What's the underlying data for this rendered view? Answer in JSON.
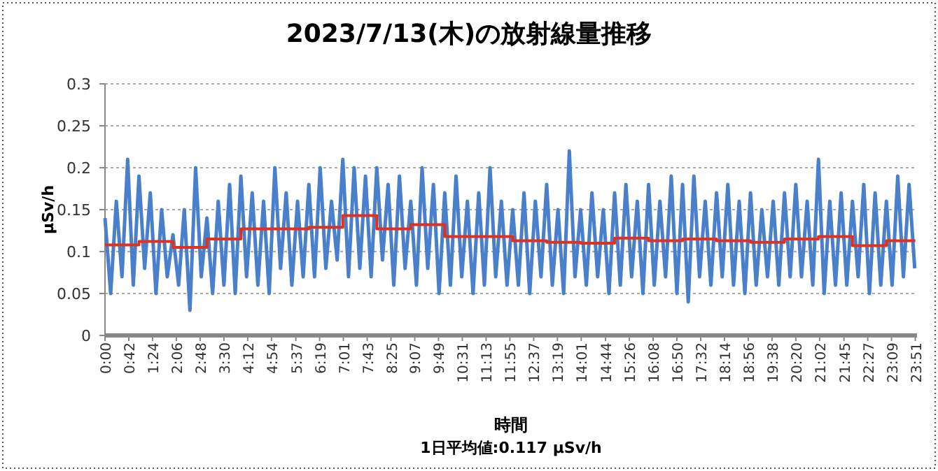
{
  "chart_data": {
    "type": "line",
    "title": "2023/7/13(木)の放射線量推移",
    "xlabel": "時間",
    "ylabel": "µSv/h",
    "annotations": [
      "1日平均値:0.117 µSv/h"
    ],
    "xlim": [
      0,
      23.9
    ],
    "ylim": [
      0,
      0.3
    ],
    "yticks": [
      0,
      0.05,
      0.1,
      0.15,
      0.2,
      0.25,
      0.3
    ],
    "xticks": [
      {
        "value": 0,
        "label": "0:00"
      },
      {
        "value": 0.7,
        "label": "0:42"
      },
      {
        "value": 1.4,
        "label": "1:24"
      },
      {
        "value": 2.1,
        "label": "2:06"
      },
      {
        "value": 2.8,
        "label": "2:48"
      },
      {
        "value": 3.5,
        "label": "3:30"
      },
      {
        "value": 4.2,
        "label": "4:12"
      },
      {
        "value": 4.9,
        "label": "4:54"
      },
      {
        "value": 5.617,
        "label": "5:37"
      },
      {
        "value": 6.317,
        "label": "6:19"
      },
      {
        "value": 7.017,
        "label": "7:01"
      },
      {
        "value": 7.717,
        "label": "7:43"
      },
      {
        "value": 8.417,
        "label": "8:25"
      },
      {
        "value": 9.117,
        "label": "9:07"
      },
      {
        "value": 9.817,
        "label": "9:49"
      },
      {
        "value": 10.517,
        "label": "10:31"
      },
      {
        "value": 11.217,
        "label": "11:13"
      },
      {
        "value": 11.917,
        "label": "11:55"
      },
      {
        "value": 12.617,
        "label": "12:37"
      },
      {
        "value": 13.317,
        "label": "13:19"
      },
      {
        "value": 14.017,
        "label": "14:01"
      },
      {
        "value": 14.733,
        "label": "14:44"
      },
      {
        "value": 15.433,
        "label": "15:26"
      },
      {
        "value": 16.133,
        "label": "16:08"
      },
      {
        "value": 16.833,
        "label": "16:50"
      },
      {
        "value": 17.533,
        "label": "17:32"
      },
      {
        "value": 18.233,
        "label": "18:14"
      },
      {
        "value": 18.933,
        "label": "18:56"
      },
      {
        "value": 19.633,
        "label": "19:38"
      },
      {
        "value": 20.333,
        "label": "20:20"
      },
      {
        "value": 21.033,
        "label": "21:02"
      },
      {
        "value": 21.75,
        "label": "21:45"
      },
      {
        "value": 22.45,
        "label": "22:27"
      },
      {
        "value": 23.15,
        "label": "23:09"
      },
      {
        "value": 23.85,
        "label": "23:51"
      }
    ],
    "grid": "y",
    "series": [
      {
        "color": "#4a7fcb",
        "x": [
          0,
          0.167,
          0.333,
          0.5,
          0.667,
          0.833,
          1,
          1.167,
          1.333,
          1.5,
          1.667,
          1.833,
          2,
          2.167,
          2.333,
          2.5,
          2.667,
          2.833,
          3,
          3.167,
          3.333,
          3.5,
          3.667,
          3.833,
          4,
          4.167,
          4.333,
          4.5,
          4.667,
          4.833,
          5,
          5.167,
          5.333,
          5.5,
          5.667,
          5.833,
          6,
          6.167,
          6.333,
          6.5,
          6.667,
          6.833,
          7,
          7.167,
          7.333,
          7.5,
          7.667,
          7.833,
          8,
          8.167,
          8.333,
          8.5,
          8.667,
          8.833,
          9,
          9.167,
          9.333,
          9.5,
          9.667,
          9.833,
          10,
          10.167,
          10.333,
          10.5,
          10.667,
          10.833,
          11,
          11.167,
          11.333,
          11.5,
          11.667,
          11.833,
          12,
          12.167,
          12.333,
          12.5,
          12.667,
          12.833,
          13,
          13.167,
          13.333,
          13.5,
          13.667,
          13.833,
          14,
          14.167,
          14.333,
          14.5,
          14.667,
          14.833,
          15,
          15.167,
          15.333,
          15.5,
          15.667,
          15.833,
          16,
          16.167,
          16.333,
          16.5,
          16.667,
          16.833,
          17,
          17.167,
          17.333,
          17.5,
          17.667,
          17.833,
          18,
          18.167,
          18.333,
          18.5,
          18.667,
          18.833,
          19,
          19.167,
          19.333,
          19.5,
          19.667,
          19.833,
          20,
          20.167,
          20.333,
          20.5,
          20.667,
          20.833,
          21,
          21.167,
          21.333,
          21.5,
          21.667,
          21.833,
          22,
          22.167,
          22.333,
          22.5,
          22.667,
          22.833,
          23,
          23.167,
          23.333,
          23.5,
          23.667,
          23.833
        ],
        "values": [
          0.14,
          0.05,
          0.16,
          0.07,
          0.21,
          0.06,
          0.19,
          0.08,
          0.17,
          0.05,
          0.15,
          0.07,
          0.12,
          0.06,
          0.15,
          0.03,
          0.2,
          0.07,
          0.14,
          0.05,
          0.16,
          0.06,
          0.18,
          0.05,
          0.19,
          0.07,
          0.17,
          0.06,
          0.16,
          0.05,
          0.2,
          0.08,
          0.17,
          0.06,
          0.16,
          0.07,
          0.18,
          0.07,
          0.2,
          0.08,
          0.16,
          0.09,
          0.21,
          0.07,
          0.2,
          0.08,
          0.19,
          0.07,
          0.2,
          0.09,
          0.18,
          0.06,
          0.19,
          0.08,
          0.16,
          0.06,
          0.2,
          0.08,
          0.18,
          0.05,
          0.17,
          0.06,
          0.19,
          0.07,
          0.16,
          0.05,
          0.17,
          0.06,
          0.2,
          0.07,
          0.16,
          0.06,
          0.15,
          0.06,
          0.17,
          0.05,
          0.16,
          0.07,
          0.18,
          0.06,
          0.15,
          0.05,
          0.22,
          0.07,
          0.15,
          0.06,
          0.17,
          0.07,
          0.15,
          0.05,
          0.17,
          0.06,
          0.18,
          0.07,
          0.16,
          0.05,
          0.18,
          0.06,
          0.16,
          0.07,
          0.19,
          0.05,
          0.18,
          0.04,
          0.19,
          0.07,
          0.16,
          0.06,
          0.17,
          0.07,
          0.18,
          0.06,
          0.16,
          0.05,
          0.17,
          0.06,
          0.15,
          0.07,
          0.16,
          0.06,
          0.17,
          0.07,
          0.18,
          0.07,
          0.16,
          0.06,
          0.21,
          0.05,
          0.16,
          0.06,
          0.17,
          0.06,
          0.16,
          0.07,
          0.18,
          0.05,
          0.17,
          0.06,
          0.16,
          0.06,
          0.19,
          0.07,
          0.18,
          0.08
        ]
      },
      {
        "type": "step",
        "color": "#e0301e",
        "x": [
          0,
          1,
          2,
          3,
          4,
          5,
          6,
          7,
          8,
          9,
          10,
          11,
          12,
          13,
          14,
          15,
          16,
          17,
          18,
          19,
          20,
          21,
          22,
          23,
          23.85
        ],
        "values": [
          0.108,
          0.112,
          0.105,
          0.115,
          0.127,
          0.127,
          0.129,
          0.143,
          0.127,
          0.132,
          0.118,
          0.118,
          0.113,
          0.111,
          0.11,
          0.116,
          0.113,
          0.115,
          0.113,
          0.111,
          0.115,
          0.118,
          0.107,
          0.113,
          0.113
        ]
      }
    ]
  }
}
